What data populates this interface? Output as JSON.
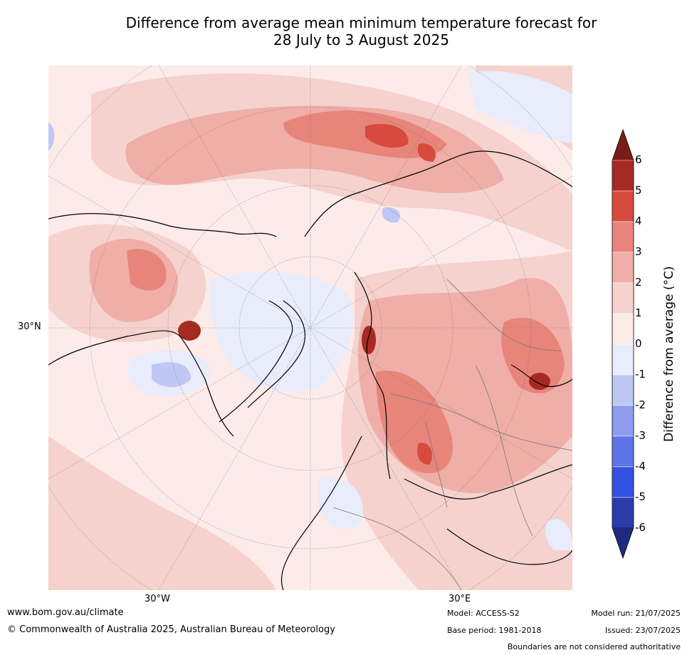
{
  "title_line1": "Difference from average mean minimum temperature forecast for",
  "title_line2": "28 July to 3 August 2025",
  "map_labels": {
    "lat_30n": "30°N",
    "lon_30w": "30°W",
    "lon_30e": "30°E"
  },
  "colorbar": {
    "title": "Difference from average (°C)",
    "ticks": [
      "6",
      "5",
      "4",
      "3",
      "2",
      "1",
      "0",
      "-1",
      "-2",
      "-3",
      "-4",
      "-5",
      "-6"
    ],
    "bins": [
      {
        "range": "5 to 6",
        "color": "#a52a22"
      },
      {
        "range": "4 to 5",
        "color": "#d64b3e"
      },
      {
        "range": "3 to 4",
        "color": "#e8857b"
      },
      {
        "range": "2 to 3",
        "color": "#efaea7"
      },
      {
        "range": "1 to 2",
        "color": "#f5d2ce"
      },
      {
        "range": "0 to 1",
        "color": "#fcebe9"
      },
      {
        "range": "-1 to 0",
        "color": "#e8ecfb"
      },
      {
        "range": "-2 to -1",
        "color": "#bfc8f4"
      },
      {
        "range": "-3 to -2",
        "color": "#8d9cee"
      },
      {
        "range": "-4 to -3",
        "color": "#5d74e6"
      },
      {
        "range": "-5 to -4",
        "color": "#3250df"
      },
      {
        "range": "-6 to -5",
        "color": "#2c3ca8"
      }
    ],
    "top_arrow_color": "#7a1d18",
    "bottom_arrow_color": "#1f2a80"
  },
  "footer": {
    "website": "www.bom.gov.au/climate",
    "copyright": "© Commonwealth of Australia 2025, Australian Bureau of Meteorology",
    "model": "Model: ACCESS-S2",
    "base_period": "Base period: 1981-2018",
    "model_run": "Model run: 21/07/2025",
    "issued": "Issued: 23/07/2025",
    "disclaimer": "Boundaries are not considered authoritative"
  }
}
